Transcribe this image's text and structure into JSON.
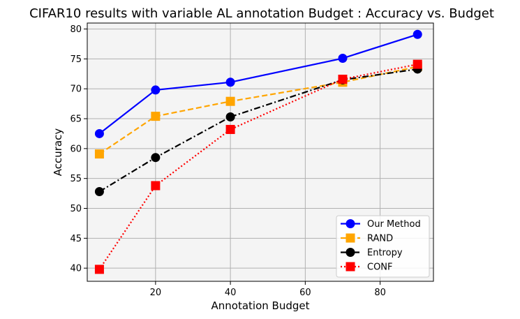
{
  "chart_data": {
    "type": "line",
    "title": "CIFAR10 results with variable AL annotation Budget : Accuracy vs. Budget",
    "xlabel": "Annotation Budget",
    "ylabel": "Accuracy",
    "xlim": [
      1.75,
      94.25
    ],
    "ylim": [
      37.8,
      81.0
    ],
    "xticks": [
      20,
      40,
      60,
      80
    ],
    "yticks": [
      40,
      45,
      50,
      55,
      60,
      65,
      70,
      75,
      80
    ],
    "grid": true,
    "background": "#f4f4f4",
    "legend_position": "lower right",
    "x": [
      5,
      20,
      40,
      70,
      90
    ],
    "series": [
      {
        "name": "Our Method",
        "values": [
          62.5,
          69.8,
          71.1,
          75.1,
          79.1
        ],
        "color": "#0000ff",
        "dash": "solid",
        "marker": "circle"
      },
      {
        "name": "RAND",
        "values": [
          59.1,
          65.4,
          67.9,
          71.1,
          73.7
        ],
        "color": "#ffa500",
        "dash": "dashed",
        "marker": "square"
      },
      {
        "name": "Entropy",
        "values": [
          52.8,
          58.5,
          65.3,
          71.5,
          73.3
        ],
        "color": "#000000",
        "dash": "dashdot",
        "marker": "circle"
      },
      {
        "name": "CONF",
        "values": [
          39.8,
          53.8,
          63.2,
          71.6,
          74.1
        ],
        "color": "#ff0000",
        "dash": "dotted",
        "marker": "square"
      }
    ]
  }
}
